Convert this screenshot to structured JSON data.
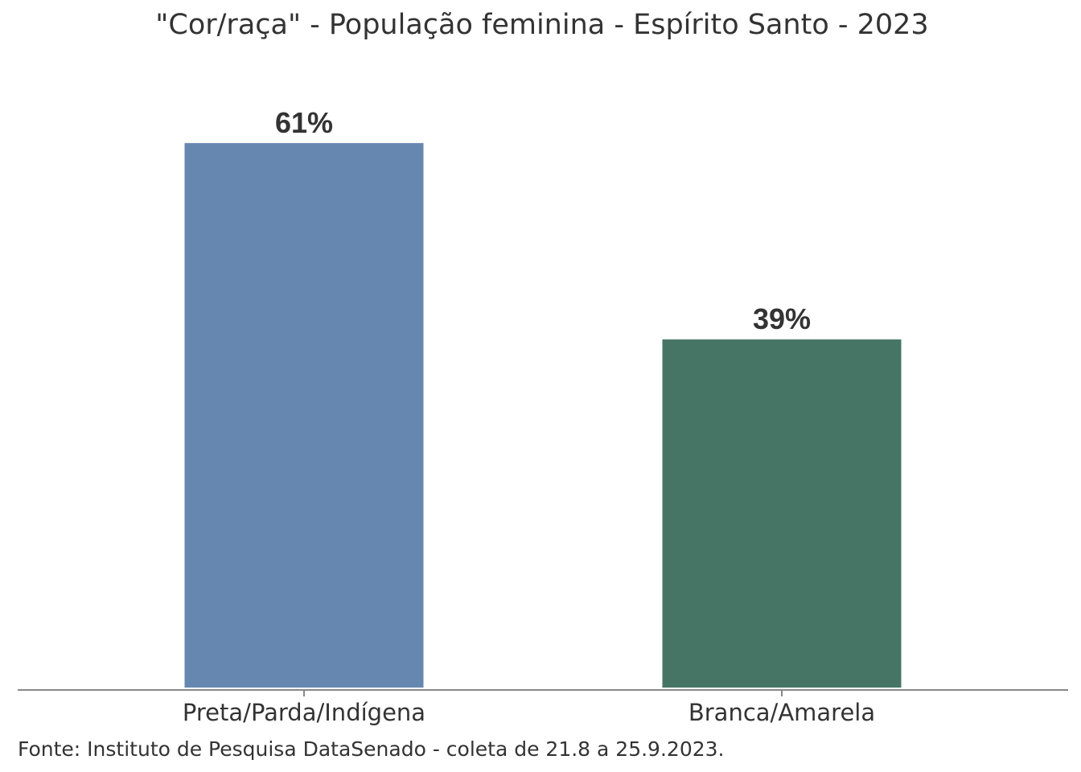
{
  "chart_data": {
    "type": "bar",
    "title": "\"Cor/raça\" - População feminina - Espírito Santo - 2023",
    "categories": [
      "Preta/Parda/Indígena",
      "Branca/Amarela"
    ],
    "values": [
      61,
      39
    ],
    "value_labels": [
      "61%",
      "39%"
    ],
    "colors": [
      "#6688b0",
      "#467565"
    ],
    "ylim": [
      0,
      100
    ],
    "xlabel": "",
    "ylabel": "",
    "grid": false,
    "legend": "none"
  },
  "source_note": "Fonte: Instituto de Pesquisa DataSenado - coleta de 21.8 a 25.9.2023."
}
